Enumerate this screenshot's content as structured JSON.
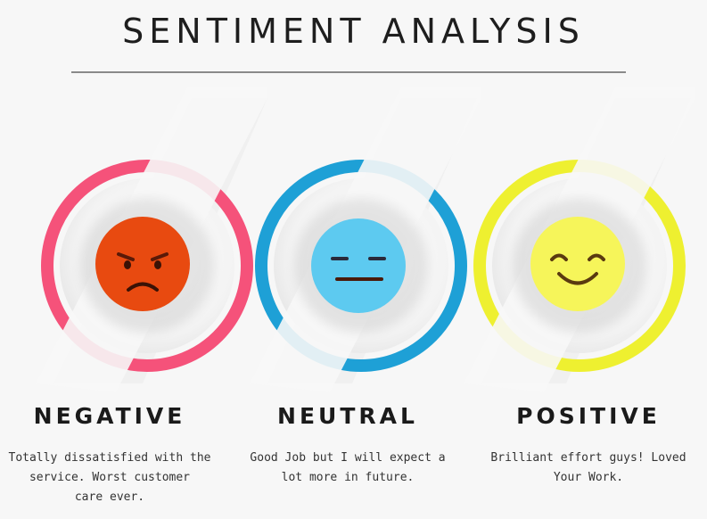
{
  "title": "SENTIMENT ANALYSIS",
  "colors": {
    "negative_ring": "#f5527a",
    "negative_face": "#e84a10",
    "neutral_ring": "#1ea0d6",
    "neutral_face": "#5dcaf0",
    "positive_ring": "#eef030",
    "positive_face": "#f6f55a",
    "background": "#f7f7f7"
  },
  "sentiments": [
    {
      "label": "NEGATIVE",
      "icon": "angry-face-icon",
      "description": "Totally dissatisfied with the\nservice. Worst customer\ncare ever."
    },
    {
      "label": "NEUTRAL",
      "icon": "neutral-face-icon",
      "description": "Good Job but I will expect a\nlot more in future."
    },
    {
      "label": "POSITIVE",
      "icon": "smiling-face-icon",
      "description": "Brilliant effort guys! Loved\nYour Work."
    }
  ]
}
